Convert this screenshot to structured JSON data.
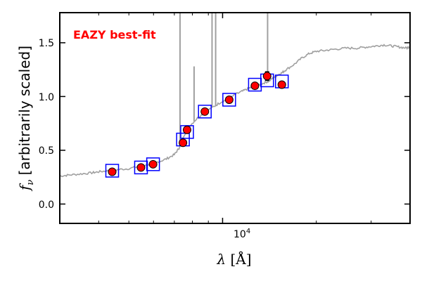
{
  "chart_data": {
    "type": "scatter",
    "annotation": "EAZY best-fit",
    "annotation_color": "#ff0000",
    "xlabel": "λ [Å]",
    "ylabel": "fν [arbitrarily scaled]",
    "ylabel_symbol": "f",
    "ylabel_subscript": "ν",
    "ylabel_text": "[arbitrarily scaled]",
    "xlabel_symbol": "λ",
    "xlabel_unit": "[Å]",
    "xscale": "log",
    "xlim": [
      3000,
      40000
    ],
    "ylim": [
      -0.18,
      1.78
    ],
    "xtick_label": {
      "value": 10000,
      "base": "10",
      "exp": "4"
    },
    "yticks": [
      0.0,
      0.5,
      1.0,
      1.5
    ],
    "ytick_labels": [
      "0.0",
      "0.5",
      "1.0",
      "1.5"
    ],
    "colors": {
      "model": "#a0a0a0",
      "observed_fill": "#ff0000",
      "observed_edge": "#000000",
      "box": "#0000ff"
    },
    "series": [
      {
        "name": "observed photometry",
        "x": [
          4420,
          5470,
          5980,
          7460,
          7690,
          8770,
          10500,
          12700,
          13900,
          15500
        ],
        "y": [
          0.3,
          0.34,
          0.37,
          0.57,
          0.69,
          0.86,
          0.97,
          1.1,
          1.19,
          1.11
        ],
        "yerr": [
          0.015,
          0.015,
          0.015,
          0.015,
          0.015,
          0.02,
          0.025,
          0.03,
          0.04,
          0.025
        ]
      },
      {
        "name": "model photometry",
        "x": [
          4420,
          5470,
          5980,
          7460,
          7690,
          8770,
          10500,
          12700,
          13900,
          15500
        ],
        "y": [
          0.31,
          0.34,
          0.37,
          0.6,
          0.67,
          0.86,
          0.97,
          1.11,
          1.15,
          1.14
        ]
      },
      {
        "name": "EAZY best-fit template",
        "x": [
          3000,
          3200,
          3500,
          3800,
          4000,
          4300,
          4600,
          5000,
          5400,
          5800,
          6200,
          6600,
          7000,
          7250,
          7450,
          7800,
          8300,
          8800,
          9300,
          9900,
          10500,
          11000,
          11600,
          12200,
          12800,
          13400,
          14000,
          14500,
          15000,
          15500,
          16000,
          17000,
          18000,
          19000,
          20000,
          21500,
          23000,
          25000,
          27000,
          29000,
          31000,
          33000,
          35000,
          37000,
          39000,
          40000
        ],
        "y": [
          0.26,
          0.27,
          0.28,
          0.29,
          0.3,
          0.31,
          0.32,
          0.33,
          0.35,
          0.37,
          0.39,
          0.42,
          0.46,
          0.52,
          0.62,
          0.72,
          0.8,
          0.86,
          0.9,
          0.95,
          0.98,
          1.02,
          1.05,
          1.08,
          1.1,
          1.12,
          1.14,
          1.17,
          1.2,
          1.22,
          1.25,
          1.3,
          1.36,
          1.4,
          1.42,
          1.43,
          1.44,
          1.45,
          1.45,
          1.46,
          1.47,
          1.48,
          1.47,
          1.46,
          1.45,
          1.47
        ]
      },
      {
        "name": "emission lines",
        "x": [
          7300,
          8100,
          9250,
          9500,
          13950
        ],
        "y": [
          1.78,
          1.28,
          1.78,
          1.78,
          1.78
        ]
      }
    ]
  }
}
